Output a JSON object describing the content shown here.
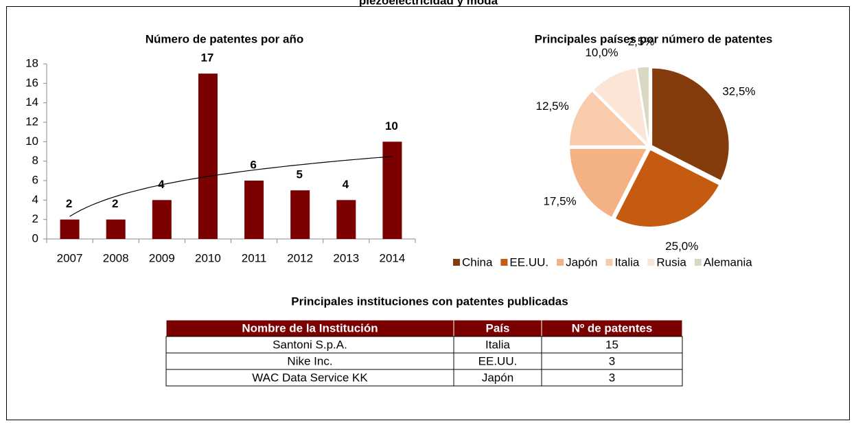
{
  "title": "piezoelectricidad y moda",
  "chart_data": [
    {
      "type": "bar",
      "title": "Número de patentes por año",
      "categories": [
        "2007",
        "2008",
        "2009",
        "2010",
        "2011",
        "2012",
        "2013",
        "2014"
      ],
      "values": [
        2,
        2,
        4,
        17,
        6,
        5,
        4,
        10
      ],
      "color": "#7b0000",
      "ylim": [
        0,
        18
      ],
      "yticks": [
        0,
        2,
        4,
        6,
        8,
        10,
        12,
        14,
        16,
        18
      ],
      "data_labels": true,
      "trendline": "logarithmic"
    },
    {
      "type": "pie",
      "title": "Principales países por número de patentes",
      "categories": [
        "China",
        "EE.UU.",
        "Japón",
        "Italia",
        "Rusia",
        "Alemania"
      ],
      "values": [
        32.5,
        25.0,
        17.5,
        12.5,
        10.0,
        2.5
      ],
      "value_labels": [
        "32,5%",
        "25,0%",
        "17,5%",
        "12,5%",
        "10,0%",
        "2,5%"
      ],
      "colors": [
        "#843c0c",
        "#c55a11",
        "#f4b183",
        "#f8cbad",
        "#fbe5d6",
        "#d9d9c3"
      ],
      "legend": "bottom"
    }
  ],
  "table": {
    "title": "Principales instituciones con patentes publicadas",
    "header": [
      "Nombre de la Institución",
      "País",
      "Nº de patentes"
    ],
    "rows": [
      [
        "Santoni S.p.A.",
        "Italia",
        "15"
      ],
      [
        "Nike Inc.",
        "EE.UU.",
        "3"
      ],
      [
        "WAC Data Service KK",
        "Japón",
        "3"
      ]
    ]
  }
}
